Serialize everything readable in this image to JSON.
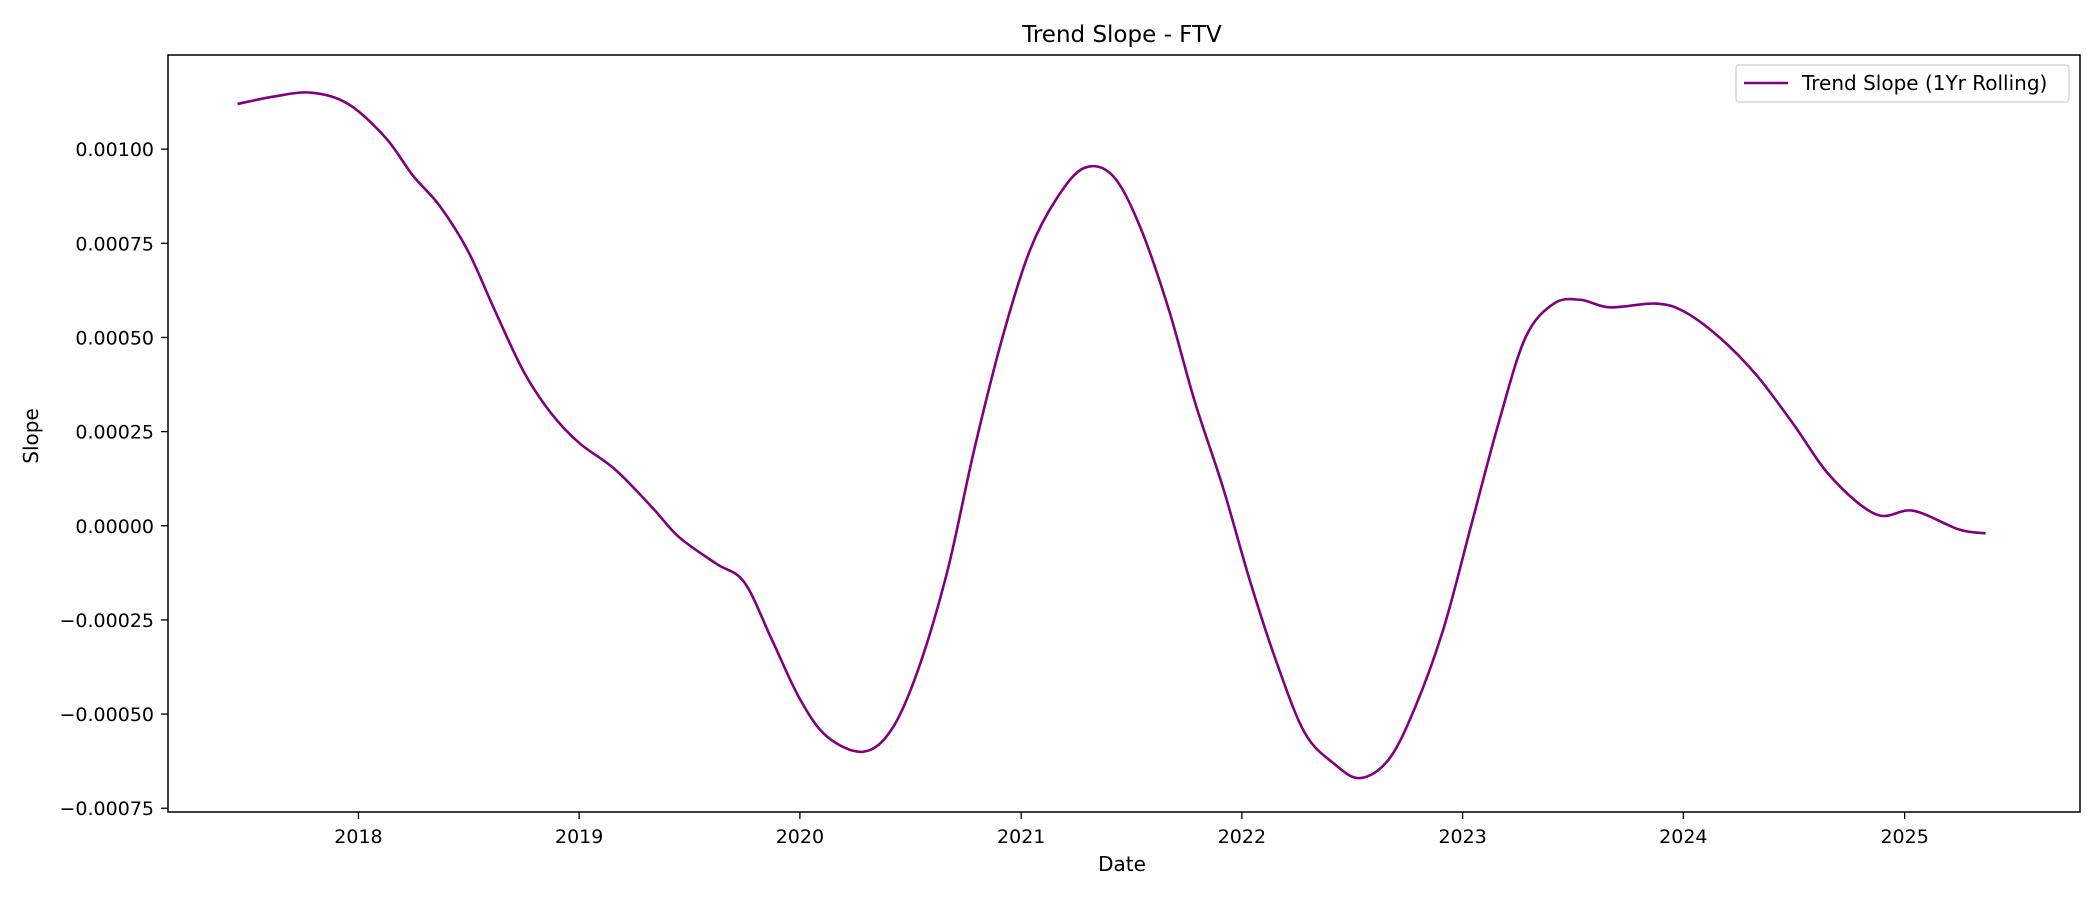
{
  "chart_data": {
    "type": "line",
    "title": "Trend Slope - FTV",
    "xlabel": "Date",
    "ylabel": "Slope",
    "x_ticks": [
      "2018",
      "2019",
      "2020",
      "2021",
      "2022",
      "2023",
      "2024",
      "2025"
    ],
    "y_ticks": [
      "0.00100",
      "0.00075",
      "0.00050",
      "0.00025",
      "0.00000",
      "−0.00025",
      "−0.00050",
      "−0.00075"
    ],
    "xlim": [
      "2017-02-20",
      "2025-10-18"
    ],
    "ylim": [
      -0.00076,
      0.00125
    ],
    "grid": false,
    "legend": {
      "position": "top-right",
      "entries": [
        "Trend Slope (1Yr Rolling)"
      ]
    },
    "series": [
      {
        "name": "Trend Slope (1Yr Rolling)",
        "color": "#800080",
        "points": [
          [
            "2017-06-15",
            0.00112
          ],
          [
            "2017-08-15",
            0.00114
          ],
          [
            "2017-10-15",
            0.00115
          ],
          [
            "2017-12-15",
            0.00112
          ],
          [
            "2018-02-15",
            0.00103
          ],
          [
            "2018-04-01",
            0.00093
          ],
          [
            "2018-05-15",
            0.00085
          ],
          [
            "2018-07-01",
            0.00073
          ],
          [
            "2018-08-15",
            0.00057
          ],
          [
            "2018-10-01",
            0.00041
          ],
          [
            "2018-11-15",
            0.0003
          ],
          [
            "2019-01-01",
            0.00022
          ],
          [
            "2019-03-01",
            0.00015
          ],
          [
            "2019-05-01",
            5e-05
          ],
          [
            "2019-06-15",
            -3e-05
          ],
          [
            "2019-08-15",
            -0.0001
          ],
          [
            "2019-10-01",
            -0.00015
          ],
          [
            "2019-11-15",
            -0.0003
          ],
          [
            "2020-01-01",
            -0.00046
          ],
          [
            "2020-02-15",
            -0.00056
          ],
          [
            "2020-04-15",
            -0.0006
          ],
          [
            "2020-06-01",
            -0.00054
          ],
          [
            "2020-07-15",
            -0.00038
          ],
          [
            "2020-09-01",
            -0.00012
          ],
          [
            "2020-10-15",
            0.0002
          ],
          [
            "2020-12-01",
            0.0005
          ],
          [
            "2021-01-15",
            0.00073
          ],
          [
            "2021-03-01",
            0.00087
          ],
          [
            "2021-04-15",
            0.00095
          ],
          [
            "2021-06-01",
            0.00093
          ],
          [
            "2021-07-15",
            0.0008
          ],
          [
            "2021-09-01",
            0.00058
          ],
          [
            "2021-10-15",
            0.00033
          ],
          [
            "2021-12-01",
            0.0001
          ],
          [
            "2022-01-15",
            -0.00015
          ],
          [
            "2022-03-01",
            -0.00037
          ],
          [
            "2022-04-15",
            -0.00055
          ],
          [
            "2022-06-01",
            -0.00063
          ],
          [
            "2022-07-15",
            -0.00067
          ],
          [
            "2022-09-01",
            -0.00062
          ],
          [
            "2022-10-15",
            -0.00048
          ],
          [
            "2022-12-01",
            -0.00027
          ],
          [
            "2023-01-15",
            0.0
          ],
          [
            "2023-03-01",
            0.00027
          ],
          [
            "2023-04-15",
            0.0005
          ],
          [
            "2023-06-01",
            0.00059
          ],
          [
            "2023-07-15",
            0.0006
          ],
          [
            "2023-09-01",
            0.00058
          ],
          [
            "2023-11-15",
            0.00059
          ],
          [
            "2024-01-01",
            0.00057
          ],
          [
            "2024-03-01",
            0.0005
          ],
          [
            "2024-05-01",
            0.0004
          ],
          [
            "2024-07-01",
            0.00027
          ],
          [
            "2024-09-01",
            0.00013
          ],
          [
            "2024-11-15",
            3e-05
          ],
          [
            "2025-01-15",
            4e-05
          ],
          [
            "2025-04-01",
            -1e-05
          ],
          [
            "2025-05-15",
            -2e-05
          ]
        ]
      }
    ]
  }
}
